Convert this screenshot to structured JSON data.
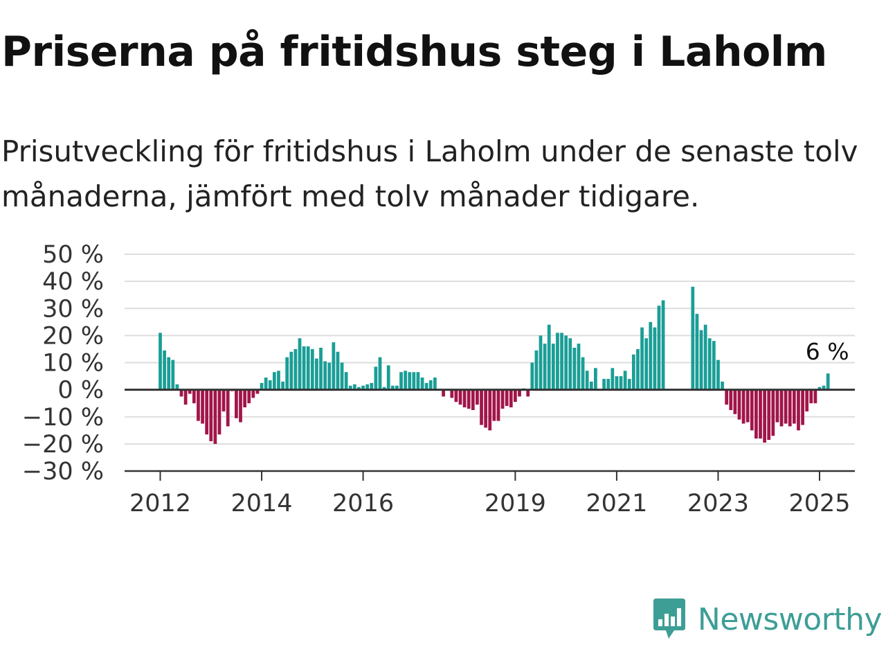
{
  "title": "Priserna på fritidshus steg i Laholm",
  "subtitle": "Prisutveckling för fritidshus i Laholm under de senaste tolv månaderna, jämfört med tolv månader tidigare.",
  "brand": {
    "name": "Newsworthy",
    "icon": "newsworthy-logo-icon",
    "color": "#3d9e96"
  },
  "chart_data": {
    "type": "bar",
    "x_start": "2012-01",
    "x_end": "2025-01",
    "x_interval": "month",
    "xticks": [
      {
        "label": "2012",
        "date": "2012-01"
      },
      {
        "label": "2014",
        "date": "2014-01"
      },
      {
        "label": "2016",
        "date": "2016-01"
      },
      {
        "label": "2019",
        "date": "2019-01"
      },
      {
        "label": "2021",
        "date": "2021-01"
      },
      {
        "label": "2023",
        "date": "2023-01"
      },
      {
        "label": "2025",
        "date": "2025-01"
      }
    ],
    "yticks": [
      50,
      40,
      30,
      20,
      10,
      0,
      -10,
      -20,
      -30
    ],
    "ytick_labels": [
      "50 %",
      "40 %",
      "30 %",
      "20 %",
      "10 %",
      "0 %",
      "−10 %",
      "−20 %",
      "−30 %"
    ],
    "ylim": [
      -30,
      50
    ],
    "grid": true,
    "colors": {
      "positive": "#1a9e96",
      "negative": "#a1154a"
    },
    "last_value_label": "6 %",
    "values": [
      21,
      14.5,
      12,
      11,
      2,
      -2.5,
      -5.5,
      -1.5,
      -5,
      -11.5,
      -12.5,
      -16.5,
      -19,
      -20,
      -16.5,
      -8,
      -13.5,
      -0.5,
      -10.5,
      -12,
      -6.5,
      -5,
      -3,
      -1.5,
      2.5,
      4.5,
      3.5,
      6.5,
      7,
      3,
      12,
      14,
      15,
      19,
      16,
      16,
      15,
      11.5,
      15.5,
      10.5,
      10,
      17.5,
      14,
      10,
      6.5,
      1.5,
      2,
      1,
      1.5,
      2,
      2.5,
      8.5,
      12,
      1,
      9,
      1.5,
      1.5,
      6.5,
      7,
      6.5,
      6.5,
      6.5,
      4.5,
      2.5,
      3.5,
      4.5,
      0,
      -2.5,
      0,
      -3,
      -4.5,
      -5.5,
      -6.5,
      -7,
      -7.5,
      -5.5,
      -13,
      -14,
      -15,
      -11.5,
      -11.5,
      -7,
      -6,
      -6.5,
      -4.5,
      -2.5,
      0.5,
      -2.5,
      10,
      14.5,
      20,
      17,
      24,
      17,
      21,
      21,
      20,
      19,
      15.5,
      17,
      12,
      7,
      3,
      8,
      0,
      4,
      4,
      8,
      5,
      5,
      7,
      4,
      13,
      15,
      23,
      19,
      25,
      23,
      31,
      33,
      null,
      null,
      null,
      null,
      null,
      null,
      38,
      28,
      22,
      24,
      19,
      18,
      11,
      3,
      -5.5,
      -7.5,
      -9,
      -11,
      -12.5,
      -12,
      -15,
      -18,
      -18,
      -19.5,
      -18.5,
      -17,
      -12,
      -13.5,
      -12.5,
      -13.5,
      -12.5,
      -15,
      -13,
      -8,
      -5,
      -5,
      1,
      1.5,
      6
    ]
  }
}
